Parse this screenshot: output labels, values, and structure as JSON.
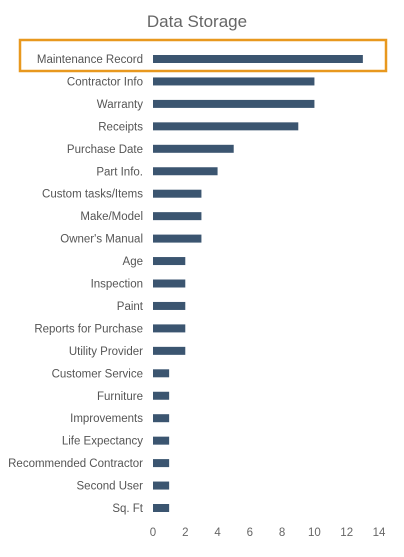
{
  "chart_data": {
    "type": "bar",
    "orientation": "horizontal",
    "title": "Data Storage",
    "xlabel": "",
    "ylabel": "",
    "categories": [
      "Maintenance Record",
      "Contractor Info",
      "Warranty",
      "Receipts",
      "Purchase Date",
      "Part Info.",
      "Custom tasks/Items",
      "Make/Model",
      "Owner's Manual",
      "Age",
      "Inspection",
      "Paint",
      "Reports for Purchase",
      "Utility Provider",
      "Customer Service",
      "Furniture",
      "Improvements",
      "Life Expectancy",
      "Recommended Contractor",
      "Second User",
      "Sq. Ft"
    ],
    "values": [
      13,
      10,
      10,
      9,
      5,
      4,
      3,
      3,
      3,
      2,
      2,
      2,
      2,
      2,
      1,
      1,
      1,
      1,
      1,
      1,
      1
    ],
    "xlim": [
      0,
      14
    ],
    "xticks": [
      0,
      2,
      4,
      6,
      8,
      10,
      12,
      14
    ],
    "grid": false,
    "legend": "none",
    "bar_color": "#3b5570",
    "highlight": {
      "category": "Maintenance Record",
      "color": "#e8981e"
    }
  }
}
